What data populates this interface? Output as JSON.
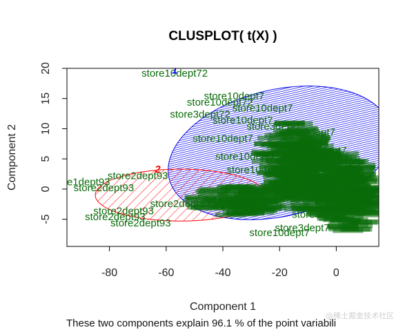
{
  "chart_data": {
    "type": "scatter",
    "title": "CLUSPLOT( t(X) )",
    "xlabel": "Component 1",
    "ylabel": "Component 2",
    "subtitle": "These two components explain 96.1 % of the point variabili",
    "xlim": [
      -95,
      15
    ],
    "ylim": [
      -9.5,
      20
    ],
    "xticks": [
      -80,
      -60,
      -40,
      -20,
      0
    ],
    "yticks": [
      -5,
      0,
      5,
      10,
      15,
      20
    ],
    "colors": {
      "cluster1": "#0000ee",
      "cluster2": "#ff0000",
      "labels": "#0a6b0a"
    },
    "clusters": [
      {
        "id": "1",
        "center": [
          -20,
          6
        ],
        "semi_axis_1": 40,
        "semi_axis_2": 10.5,
        "angle_deg": -13,
        "color": "#0000ee"
      },
      {
        "id": "2",
        "center": [
          -55,
          -1
        ],
        "semi_axis_1": 30,
        "semi_axis_2": 4.3,
        "angle_deg": 0,
        "color": "#ff0000"
      }
    ],
    "cluster_labels": [
      {
        "text": "1",
        "x": -57,
        "y": 19.7,
        "color": "#0000ee"
      },
      {
        "text": "2",
        "x": -63,
        "y": 3.3,
        "color": "#ff0000"
      }
    ],
    "point_labels": [
      {
        "text": "store10dept72",
        "x": -57,
        "y": 19.2
      },
      {
        "text": "store2dept93",
        "x": -70,
        "y": 2.2
      },
      {
        "text": "re1dept93",
        "x": -88,
        "y": 1.2
      },
      {
        "text": "store2dept93",
        "x": -82,
        "y": 0.2
      },
      {
        "text": "store2dept93",
        "x": -75,
        "y": -3.6
      },
      {
        "text": "store2dept93",
        "x": -78,
        "y": -4.6
      },
      {
        "text": "store2dept93",
        "x": -69,
        "y": -5.6
      },
      {
        "text": "store10dept7",
        "x": -36,
        "y": 15.4
      },
      {
        "text": "store10dept72",
        "x": -41,
        "y": 14.4
      },
      {
        "text": "store10dept7",
        "x": -26,
        "y": 13.4
      },
      {
        "text": "store3dept72",
        "x": -48,
        "y": 12.4
      },
      {
        "text": "store10dept7",
        "x": -33,
        "y": 11.4
      },
      {
        "text": "store3dept7",
        "x": -22,
        "y": 10.4
      },
      {
        "text": "store3dept7",
        "x": -10,
        "y": 9.4
      },
      {
        "text": "store10dept7",
        "x": -40,
        "y": 8.4
      },
      {
        "text": "store3dept7",
        "x": -14,
        "y": 7.4
      },
      {
        "text": "store3dept7",
        "x": -6,
        "y": 6.4
      },
      {
        "text": "store10dept7",
        "x": -32,
        "y": 5.4
      },
      {
        "text": "store3dept7",
        "x": -8,
        "y": 4.2
      },
      {
        "text": "store10dept7",
        "x": -28,
        "y": 3.2
      },
      {
        "text": "store3dept7",
        "x": -3,
        "y": 2.2
      },
      {
        "text": "store3dept7",
        "x": -12,
        "y": 1.2
      },
      {
        "text": "store3dept7",
        "x": -4,
        "y": -0.4
      },
      {
        "text": "store2dept93",
        "x": -55,
        "y": -2.4
      },
      {
        "text": "store3dept7",
        "x": -6,
        "y": -4.2
      },
      {
        "text": "store3dept7",
        "x": -12,
        "y": -6.4
      },
      {
        "text": "store10dept7",
        "x": -20,
        "y": -7.2
      }
    ]
  },
  "watermark": "@稀土掘金技术社区"
}
